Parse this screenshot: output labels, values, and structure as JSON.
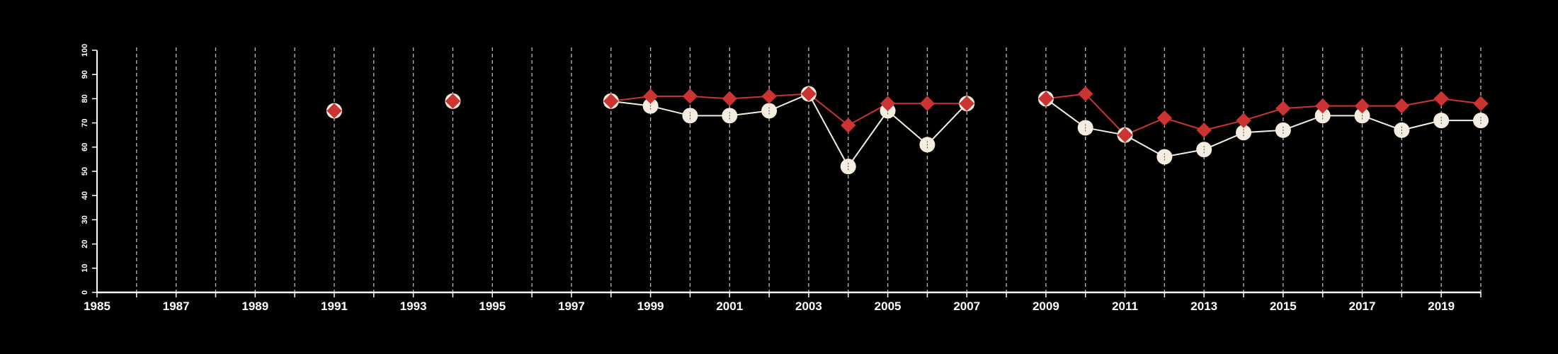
{
  "colors": {
    "background": "#000000",
    "axis": "#ffffff",
    "grid": "#bbbbbb",
    "series_a": "#f5eee0",
    "series_b": "#cc3333"
  },
  "chart_data": {
    "type": "line",
    "title": "",
    "xlabel": "",
    "ylabel": "",
    "xlim": [
      1985,
      2020
    ],
    "ylim": [
      0,
      100
    ],
    "y_ticks": [
      0,
      10,
      20,
      30,
      40,
      50,
      60,
      70,
      80,
      90,
      100
    ],
    "x_tick_labels": [
      1985,
      1987,
      1989,
      1991,
      1993,
      1995,
      1997,
      1999,
      2001,
      2003,
      2005,
      2007,
      2009,
      2011,
      2013,
      2015,
      2017,
      2019
    ],
    "x_gridlines": [
      1986,
      1987,
      1988,
      1989,
      1990,
      1991,
      1992,
      1993,
      1994,
      1995,
      1996,
      1997,
      1998,
      1999,
      2000,
      2001,
      2002,
      2003,
      2004,
      2005,
      2006,
      2007,
      2008,
      2009,
      2010,
      2011,
      2012,
      2013,
      2014,
      2015,
      2016,
      2017,
      2018,
      2019,
      2020
    ],
    "grid": "vertical dashed",
    "legend": "none",
    "series": [
      {
        "marker": "circle",
        "color": "#f5eee0",
        "x": [
          1991,
          1994,
          1998,
          1999,
          2000,
          2001,
          2002,
          2003,
          2004,
          2005,
          2006,
          2007,
          2009,
          2010,
          2011,
          2012,
          2013,
          2014,
          2015,
          2016,
          2017,
          2018,
          2019,
          2020
        ],
        "y": [
          75,
          79,
          79,
          77,
          73,
          73,
          75,
          82,
          52,
          75,
          61,
          78,
          80,
          68,
          65,
          56,
          59,
          66,
          67,
          73,
          73,
          67,
          71,
          71
        ]
      },
      {
        "marker": "diamond",
        "color": "#cc3333",
        "x": [
          1991,
          1994,
          1998,
          1999,
          2000,
          2001,
          2002,
          2003,
          2004,
          2005,
          2006,
          2007,
          2009,
          2010,
          2011,
          2012,
          2013,
          2014,
          2015,
          2016,
          2017,
          2018,
          2019,
          2020
        ],
        "y": [
          75,
          79,
          79,
          81,
          81,
          80,
          81,
          82,
          69,
          78,
          78,
          78,
          80,
          82,
          65,
          72,
          67,
          71,
          76,
          77,
          77,
          77,
          80,
          78
        ]
      }
    ]
  }
}
